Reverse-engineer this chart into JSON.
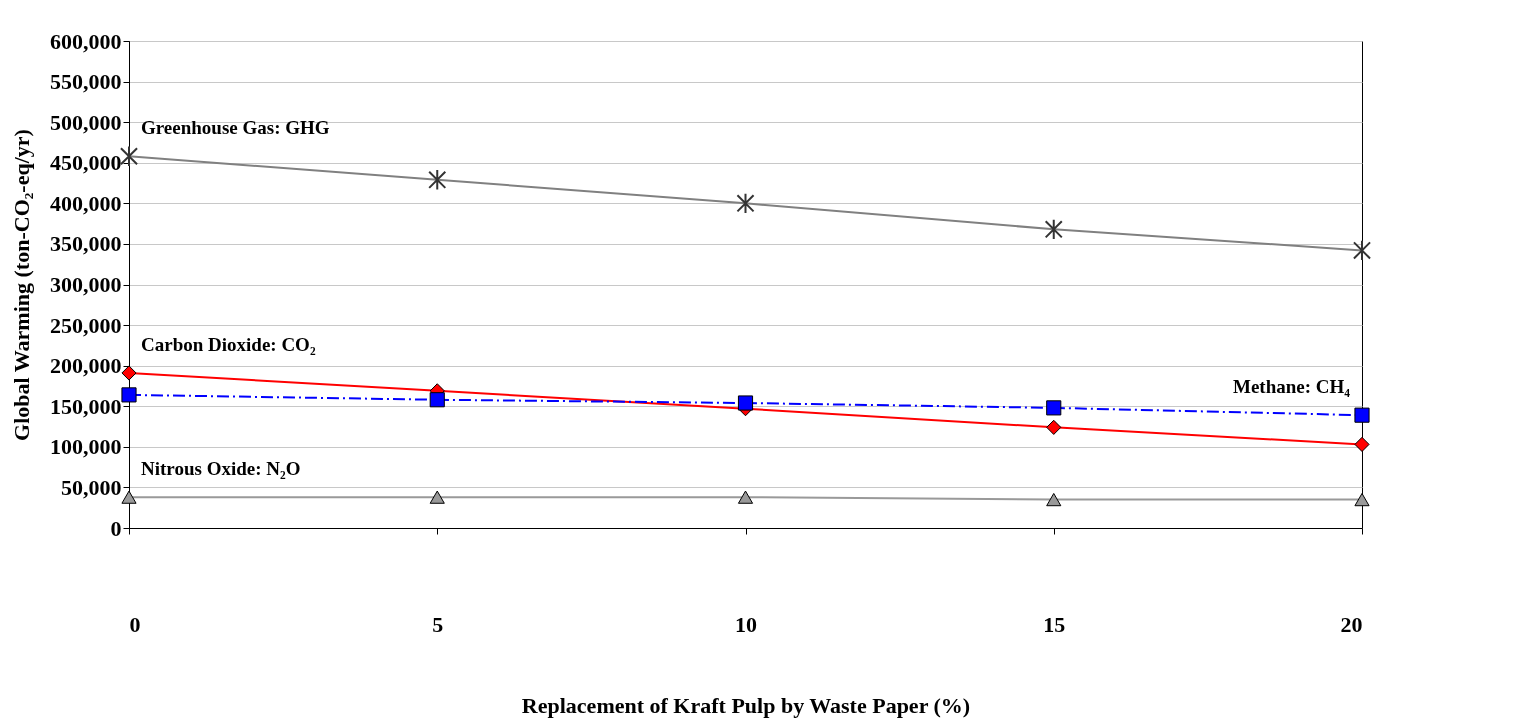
{
  "chart_data": {
    "type": "line",
    "xlabel": "Replacement of Kraft Pulp  by Waste Paper (%)",
    "ylabel": "Global Warming (ton-CO₂-eq/yr)",
    "x": [
      0,
      5,
      10,
      15,
      20
    ],
    "xlim": [
      0,
      20
    ],
    "xticks": [
      0,
      5,
      10,
      15,
      20
    ],
    "ylim": [
      0,
      600000
    ],
    "yticks": [
      0,
      {
        "value": 50000,
        "label": "50,000"
      },
      {
        "value": 100000,
        "label": "100,000"
      },
      {
        "value": 150000,
        "label": "150,000"
      },
      {
        "value": 200000,
        "label": "200,000"
      },
      {
        "value": 250000,
        "label": "250,000"
      },
      {
        "value": 300000,
        "label": "300,000"
      },
      {
        "value": 350000,
        "label": "350,000"
      },
      {
        "value": 400000,
        "label": "400,000"
      },
      {
        "value": 450000,
        "label": "450,000"
      },
      {
        "value": 500000,
        "label": "500,000"
      },
      {
        "value": 550000,
        "label": "550,000"
      },
      {
        "value": 600000,
        "label": "600,000"
      }
    ],
    "grid": "y",
    "series": [
      {
        "name": "Greenhouse Gas: GHG",
        "color": "#808080",
        "marker": "cross",
        "line_style": "solid",
        "values": [
          458000,
          429000,
          400000,
          368000,
          342000
        ]
      },
      {
        "name": "Carbon Dioxide: CO₂",
        "color": "#ff0000",
        "marker": "diamond",
        "line_style": "solid",
        "values": [
          191000,
          169000,
          147000,
          124000,
          103000
        ]
      },
      {
        "name": "Methane: CH₄",
        "color": "#0000ff",
        "marker": "square",
        "line_style": "dashed",
        "values": [
          164000,
          158000,
          154000,
          148000,
          139000
        ]
      },
      {
        "name": "Nitrous Oxide: N₂O",
        "color": "#999999",
        "marker": "triangle",
        "line_style": "solid",
        "values": [
          38000,
          38000,
          38000,
          35000,
          35000
        ]
      }
    ]
  }
}
